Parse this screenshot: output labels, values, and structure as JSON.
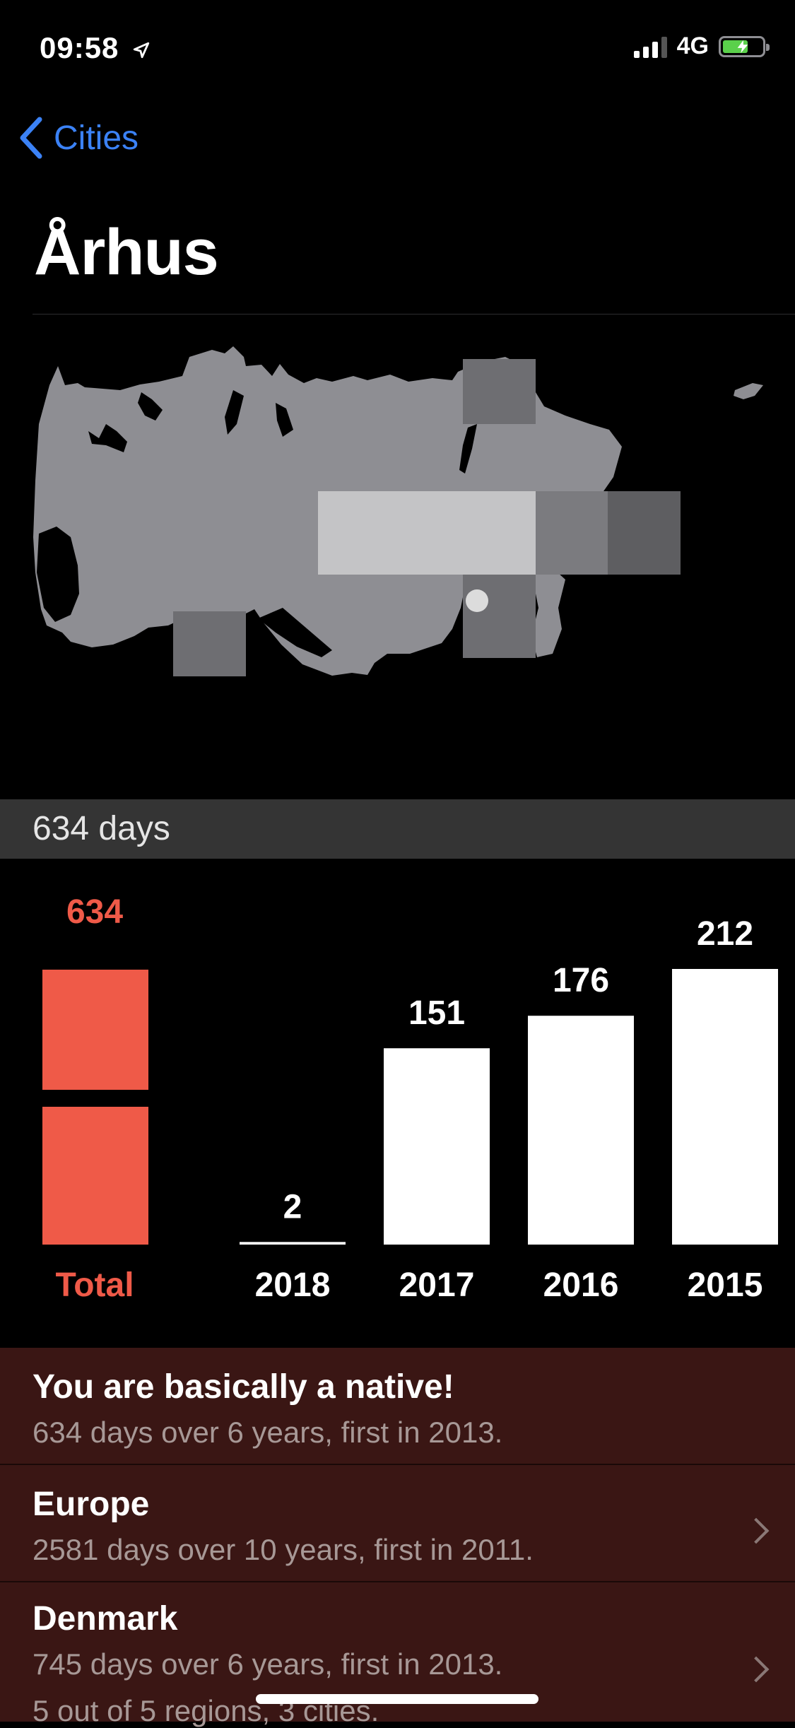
{
  "status": {
    "time": "09:58",
    "network": "4G",
    "battery_level": 0.58
  },
  "nav": {
    "back_label": "Cities"
  },
  "page": {
    "title": "Århus"
  },
  "summary": {
    "days_label": "634 days"
  },
  "colors": {
    "accent": "#ef5a48",
    "link": "#3b82f6",
    "card_bg": "#3a1614",
    "band": "#343434"
  },
  "chart_data": {
    "type": "bar",
    "title": "",
    "xlabel": "",
    "ylabel": "",
    "total": {
      "label": "Total",
      "value": 634,
      "value_label": "634"
    },
    "categories": [
      "2018",
      "2017",
      "2016",
      "2015"
    ],
    "values": [
      2,
      151,
      176,
      212
    ],
    "value_labels": [
      "2",
      "151",
      "176",
      "212"
    ],
    "grid": false
  },
  "cards": [
    {
      "title": "You are basically a native!",
      "subtitle": "634 days over 6 years, first in 2013.",
      "has_chevron": false
    },
    {
      "title": "Europe",
      "subtitle": "2581 days over 10 years, first in 2011.",
      "has_chevron": true
    },
    {
      "title": "Denmark",
      "subtitle": "745 days over 6 years, first in 2013.",
      "subtitle2": "5 out of 5 regions, 3 cities.",
      "has_chevron": true
    }
  ]
}
